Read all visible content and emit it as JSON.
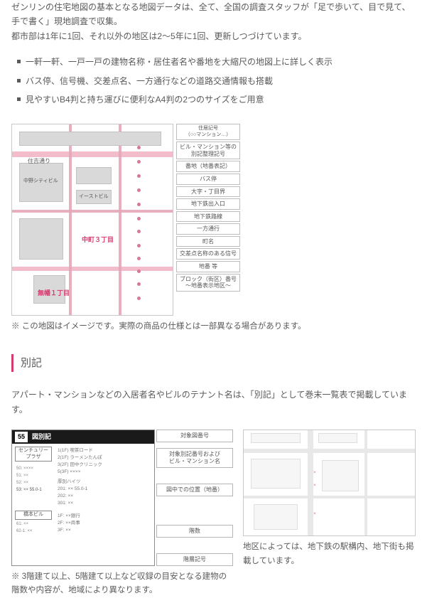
{
  "intro": {
    "line1": "ゼンリンの住宅地図の基本となる地図データは、全て、全国の調査スタッフが「足で歩いて、目で見て、手で書く」現地調査で収集。",
    "line2": "都市部は1年に1回、それ以外の地区は2〜5年に1回、更新しつづけています。"
  },
  "features": [
    "一軒一軒、一戸一戸の建物名称・居住者名や番地を大縮尺の地図上に詳しく表示",
    "バス停、信号機、交差点名、一方通行などの道路交通情報も搭載",
    "見やすいB4判と持ち運びに便利なA4判の2つのサイズをご用意"
  ],
  "map": {
    "street_label": "住吉通り",
    "bldg_small_1": "中野シティビル",
    "bldg_small_2": "イーストビル",
    "area_tag_1": "無幡１丁目",
    "area_tag_2": "中町３丁目",
    "legend": [
      "住居記号\n（○○マンション…）",
      "ビル・マンション等の\n別記整理記号",
      "番地（地番表記）",
      "バス停",
      "大字・丁目界",
      "地下鉄出入口",
      "地下鉄路線",
      "一方通行",
      "町名",
      "交差点名称のある信号",
      "地番 等",
      "ブロック（街区）番号\n〜地番表示地区〜"
    ],
    "note": "※ この地図はイメージです。実際の商品の仕様とは一部異なる場合があります。"
  },
  "bekki": {
    "heading": "別記",
    "intro": "アパート・マンションなどの入居者名やビルのテナント名は、「別記」として巻末一覧表で掲載しています。",
    "table_hdr_page": "55",
    "table_hdr_label": "図別記",
    "box1_line1": "センチュリー",
    "box1_line2": "プラザ",
    "box2": "橋本ビル",
    "lines": {
      "a": "1(1F) 喫茶ロード",
      "b": "2(1F) ラーメンたんぽ",
      "c": "3(2F) 田中クリニック",
      "d": "5(3F) ××××",
      "e": "厚別ハイツ",
      "f": "  201: ×× 55.0-1",
      "g": "  202: ××",
      "h": "  301: ××",
      "i": " 1F: ××銀行",
      "j": " 2F: ××商事",
      "k": " 3F: ××"
    },
    "sublines": {
      "s1": "50: ××××",
      "s2": "51: ××",
      "s3": "52: ××",
      "s4": "53: ×× 55.0-1",
      "s5": "61: ××",
      "s6": "62-1: ××"
    },
    "legend": [
      "対象図番号",
      "対象別記番号および\nビル・マンション名",
      "図中での位置（地番）",
      "階数",
      "階層記号"
    ],
    "left_note": "※ 3階建て以上、5階建て以上など収録の目安となる建物の階数や内容が、地域により異なります。",
    "right_note": "地区によっては、地下鉄の駅構内、地下街も掲載しています。"
  }
}
